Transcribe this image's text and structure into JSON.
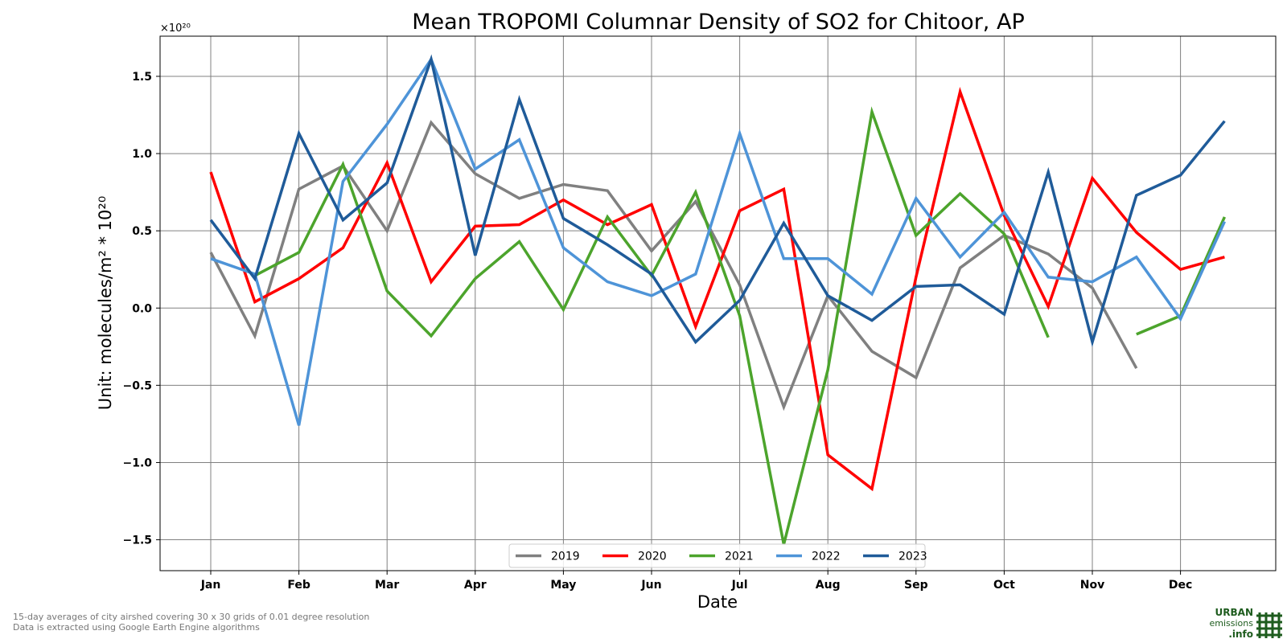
{
  "chart_data": {
    "type": "line",
    "title": "Mean TROPOMI Columnar Density of SO2 for Chitoor, AP",
    "xlabel": "Date",
    "ylabel": "Unit: molecules/m² * 10²⁰",
    "y_exponent_label": "×10²⁰",
    "ylim": [
      -1.7,
      1.76
    ],
    "y_ticks": [
      -1.5,
      -1.0,
      -0.5,
      0.0,
      0.5,
      1.0,
      1.5
    ],
    "y_tick_labels": [
      "−1.5",
      "−1.0",
      "−0.5",
      "0.0",
      "0.5",
      "1.0",
      "1.5"
    ],
    "x_tick_labels": [
      "Jan",
      "Feb",
      "Mar",
      "Apr",
      "May",
      "Jun",
      "Jul",
      "Aug",
      "Sep",
      "Oct",
      "Nov",
      "Dec"
    ],
    "x_periods": [
      "Jan 1",
      "Jan 16",
      "Feb 1",
      "Feb 16",
      "Mar 1",
      "Mar 16",
      "Apr 1",
      "Apr 16",
      "May 1",
      "May 16",
      "Jun 1",
      "Jun 16",
      "Jul 1",
      "Jul 16",
      "Aug 1",
      "Aug 16",
      "Sep 1",
      "Sep 16",
      "Oct 1",
      "Oct 16",
      "Nov 1",
      "Nov 16",
      "Dec 1",
      "Dec 16"
    ],
    "grid": true,
    "legend_position": "bottom-center",
    "series": [
      {
        "name": "2019",
        "color": "#808080",
        "values": [
          0.36,
          -0.18,
          0.77,
          0.92,
          0.5,
          1.2,
          0.87,
          0.71,
          0.8,
          0.76,
          0.37,
          0.69,
          0.15,
          -0.64,
          0.08,
          -0.28,
          -0.45,
          0.26,
          0.47,
          0.35,
          0.13,
          -0.39,
          null,
          null
        ]
      },
      {
        "name": "2020",
        "color": "#ff0000",
        "values": [
          0.88,
          0.04,
          0.19,
          0.39,
          0.94,
          0.17,
          0.53,
          0.54,
          0.7,
          0.54,
          0.67,
          -0.12,
          0.63,
          0.77,
          -0.95,
          -1.17,
          0.2,
          1.4,
          0.6,
          0.01,
          0.84,
          0.49,
          0.25,
          0.33
        ]
      },
      {
        "name": "2021",
        "color": "#4ca42c",
        "values": [
          null,
          0.21,
          0.36,
          0.93,
          0.11,
          -0.18,
          0.19,
          0.43,
          -0.01,
          0.59,
          0.21,
          0.75,
          -0.05,
          -1.53,
          -0.4,
          1.27,
          0.47,
          0.74,
          0.48,
          -0.19,
          null,
          -0.17,
          -0.05,
          0.59
        ]
      },
      {
        "name": "2022",
        "color": "#4e94d8",
        "values": [
          0.32,
          0.22,
          -0.76,
          0.82,
          1.19,
          1.61,
          0.9,
          1.09,
          0.39,
          0.17,
          0.08,
          0.22,
          1.13,
          0.32,
          0.32,
          0.09,
          0.71,
          0.33,
          0.62,
          0.2,
          0.17,
          0.33,
          -0.07,
          0.56
        ]
      },
      {
        "name": "2023",
        "color": "#1f5b99",
        "values": [
          0.57,
          0.19,
          1.13,
          0.57,
          0.81,
          1.61,
          0.34,
          1.35,
          0.58,
          0.41,
          0.22,
          -0.22,
          0.05,
          0.55,
          0.08,
          -0.08,
          0.14,
          0.15,
          -0.04,
          0.88,
          -0.22,
          0.73,
          0.86,
          1.21
        ]
      }
    ]
  },
  "footnotes": [
    "15-day averages of city airshed covering 30 x 30 grids of 0.01 degree resolution",
    "Data is extracted using Google Earth Engine algorithms"
  ],
  "logo": {
    "line1": "URBAN",
    "line2": "emissions",
    "line3": ".info",
    "color": "#1e5c1e"
  }
}
